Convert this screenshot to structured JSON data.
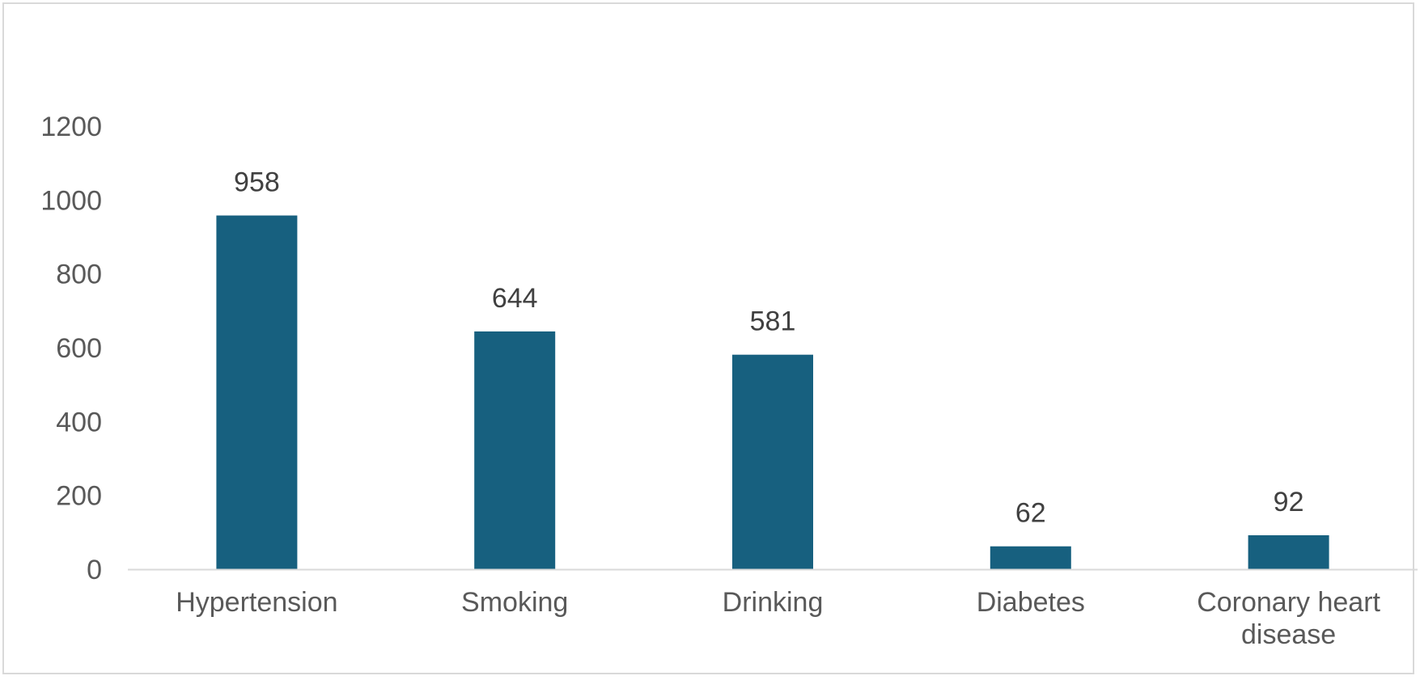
{
  "chart_data": {
    "type": "bar",
    "categories": [
      [
        "Hypertension"
      ],
      [
        "Smoking"
      ],
      [
        "Drinking"
      ],
      [
        "Diabetes"
      ],
      [
        "Coronary heart",
        "disease"
      ]
    ],
    "values": [
      958,
      644,
      581,
      62,
      92
    ],
    "data_labels": [
      "958",
      "644",
      "581",
      "62",
      "92"
    ],
    "yticks": [
      "0",
      "200",
      "400",
      "600",
      "800",
      "1000",
      "1200"
    ],
    "ylim": [
      0,
      1200
    ],
    "grid": false,
    "legend": "none",
    "bar_color": "#17607f",
    "axis_color": "#d9d9d9"
  }
}
